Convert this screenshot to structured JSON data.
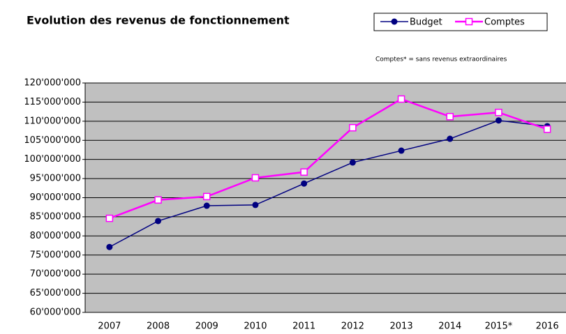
{
  "chart_data": {
    "type": "line",
    "title": "Evolution des revenus de fonctionnement",
    "annotation": "Comptes* = sans revenus extraordinaires",
    "categories": [
      "2007",
      "2008",
      "2009",
      "2010",
      "2011",
      "2012",
      "2013",
      "2014",
      "2015*",
      "2016"
    ],
    "series": [
      {
        "name": "Budget",
        "color": "#000080",
        "values": [
          77100000,
          83900000,
          87900000,
          88100000,
          93700000,
          99200000,
          102300000,
          105400000,
          110200000,
          108700000
        ]
      },
      {
        "name": "Comptes",
        "color": "#ff00ff",
        "values": [
          84600000,
          89400000,
          90300000,
          95200000,
          96700000,
          108300000,
          115800000,
          111200000,
          112300000,
          107900000
        ]
      }
    ],
    "ylim": [
      60000000,
      120000000
    ],
    "yticks": [
      {
        "value": 60000000,
        "label": "60'000'000"
      },
      {
        "value": 65000000,
        "label": "65'000'000"
      },
      {
        "value": 70000000,
        "label": "70'000'000"
      },
      {
        "value": 75000000,
        "label": "75'000'000"
      },
      {
        "value": 80000000,
        "label": "80'000'000"
      },
      {
        "value": 85000000,
        "label": "85'000'000"
      },
      {
        "value": 90000000,
        "label": "90'000'000"
      },
      {
        "value": 95000000,
        "label": "95'000'000"
      },
      {
        "value": 100000000,
        "label": "100'000'000"
      },
      {
        "value": 105000000,
        "label": "105'000'000"
      },
      {
        "value": 110000000,
        "label": "110'000'000"
      },
      {
        "value": 115000000,
        "label": "115'000'000"
      },
      {
        "value": 120000000,
        "label": "120'000'000"
      }
    ],
    "grid": true,
    "legend": "top-right"
  }
}
